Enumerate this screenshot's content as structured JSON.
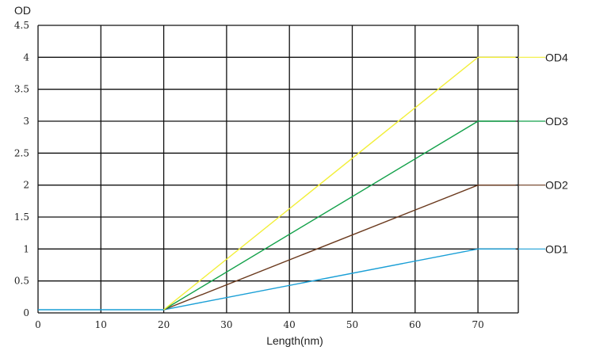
{
  "chart_data": {
    "type": "line",
    "title": "",
    "xlabel": "Length(nm)",
    "ylabel": "OD",
    "xlim": [
      0,
      76
    ],
    "ylim": [
      0,
      4.5
    ],
    "grid": true,
    "x_ticks": [
      "0",
      "10",
      "20",
      "30",
      "40",
      "50",
      "60",
      "70"
    ],
    "y_ticks": [
      "0",
      "0.5",
      "1",
      "1.5",
      "2",
      "2.5",
      "3",
      "3.5",
      "4",
      "4.5"
    ],
    "baseline_color": "#1a9fd6",
    "series": [
      {
        "name": "OD1",
        "color": "#1a9fd6",
        "x": [
          0,
          20,
          70,
          76
        ],
        "y": [
          0.05,
          0.05,
          1,
          1
        ]
      },
      {
        "name": "OD2",
        "color": "#6b3a1e",
        "x": [
          20,
          70,
          76
        ],
        "y": [
          0.05,
          2,
          2
        ]
      },
      {
        "name": "OD3",
        "color": "#13a14a",
        "x": [
          20,
          70,
          76
        ],
        "y": [
          0.05,
          3,
          3
        ]
      },
      {
        "name": "OD4",
        "color": "#f2ef3a",
        "x": [
          20,
          70,
          76
        ],
        "y": [
          0.05,
          4,
          4
        ]
      }
    ]
  }
}
